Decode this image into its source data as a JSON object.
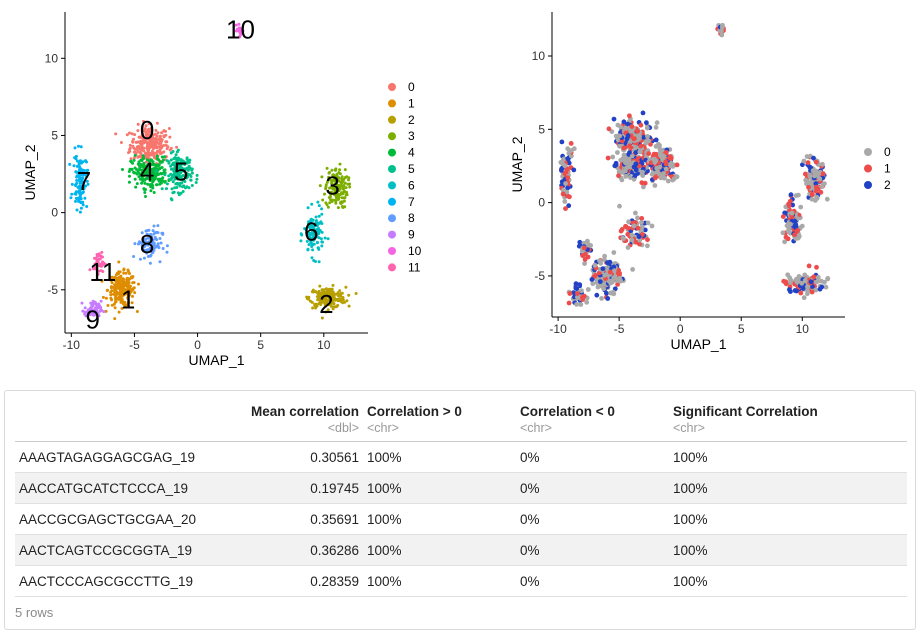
{
  "chart_data": [
    {
      "type": "scatter",
      "xlabel": "UMAP_1",
      "ylabel": "UMAP_2",
      "xticks": [
        -10,
        -5,
        0,
        5,
        10
      ],
      "yticks": [
        -5,
        0,
        5,
        10
      ],
      "xlim": [
        -10.5,
        13.5
      ],
      "ylim": [
        -7.8,
        13.0
      ],
      "legend_position": "right",
      "series": [
        {
          "name": "0",
          "color": "#F8766D",
          "center": [
            -3.8,
            4.4
          ],
          "spread": [
            1.4,
            1.1
          ],
          "n": 260
        },
        {
          "name": "1",
          "color": "#DE8C00",
          "center": [
            -6.0,
            -5.0
          ],
          "spread": [
            1.0,
            1.0
          ],
          "n": 220
        },
        {
          "name": "2",
          "color": "#B79F00",
          "center": [
            10.3,
            -5.5
          ],
          "spread": [
            1.3,
            0.6
          ],
          "n": 190
        },
        {
          "name": "3",
          "color": "#7CAE00",
          "center": [
            11.0,
            1.6
          ],
          "spread": [
            0.8,
            1.2
          ],
          "n": 150
        },
        {
          "name": "4",
          "color": "#00BA38",
          "center": [
            -3.8,
            2.6
          ],
          "spread": [
            1.3,
            0.9
          ],
          "n": 230
        },
        {
          "name": "5",
          "color": "#00C08B",
          "center": [
            -1.4,
            2.6
          ],
          "spread": [
            0.9,
            1.1
          ],
          "n": 160
        },
        {
          "name": "6",
          "color": "#00BFC4",
          "center": [
            9.2,
            -1.4
          ],
          "spread": [
            0.7,
            1.3
          ],
          "n": 120
        },
        {
          "name": "7",
          "color": "#00B4F0",
          "center": [
            -9.3,
            2.0
          ],
          "spread": [
            0.5,
            1.6
          ],
          "n": 110
        },
        {
          "name": "8",
          "color": "#619CFF",
          "center": [
            -3.8,
            -2.0
          ],
          "spread": [
            0.9,
            1.0
          ],
          "n": 90
        },
        {
          "name": "9",
          "color": "#C77CFF",
          "center": [
            -8.3,
            -6.3
          ],
          "spread": [
            0.6,
            0.5
          ],
          "n": 70
        },
        {
          "name": "10",
          "color": "#F564E3",
          "center": [
            3.4,
            11.8
          ],
          "spread": [
            0.25,
            0.35
          ],
          "n": 25
        },
        {
          "name": "11",
          "color": "#FF64B0",
          "center": [
            -7.8,
            -3.2
          ],
          "spread": [
            0.4,
            0.6
          ],
          "n": 40
        }
      ],
      "cluster_labels": [
        {
          "text": "0",
          "x": -4.0,
          "y": 5.3
        },
        {
          "text": "4",
          "x": -4.0,
          "y": 2.6
        },
        {
          "text": "5",
          "x": -1.3,
          "y": 2.6
        },
        {
          "text": "7",
          "x": -9.0,
          "y": 2.0
        },
        {
          "text": "3",
          "x": 10.7,
          "y": 1.7
        },
        {
          "text": "6",
          "x": 9.0,
          "y": -1.3
        },
        {
          "text": "8",
          "x": -4.0,
          "y": -2.1
        },
        {
          "text": "11",
          "x": -7.5,
          "y": -3.9
        },
        {
          "text": "1",
          "x": -5.5,
          "y": -5.7
        },
        {
          "text": "9",
          "x": -8.3,
          "y": -7.0
        },
        {
          "text": "2",
          "x": 10.2,
          "y": -6.0
        },
        {
          "text": "10",
          "x": 3.4,
          "y": 11.8
        }
      ]
    },
    {
      "type": "scatter",
      "xlabel": "UMAP_1",
      "ylabel": "UMAP_2",
      "xticks": [
        -10,
        -5,
        0,
        5,
        10
      ],
      "yticks": [
        -5,
        0,
        5,
        10
      ],
      "xlim": [
        -10.5,
        13.5
      ],
      "ylim": [
        -7.8,
        13.0
      ],
      "legend_position": "right",
      "series": [
        {
          "name": "0",
          "color": "#A9A9A9"
        },
        {
          "name": "1",
          "color": "#EE4B4B"
        },
        {
          "name": "2",
          "color": "#2142C6"
        }
      ]
    }
  ],
  "table": {
    "columns": [
      {
        "label": "",
        "type": ""
      },
      {
        "label": "Mean correlation",
        "type": "<dbl>"
      },
      {
        "label": "Correlation > 0",
        "type": "<chr>"
      },
      {
        "label": "Correlation < 0",
        "type": "<chr>"
      },
      {
        "label": "Significant Correlation",
        "type": "<chr>"
      }
    ],
    "rows": [
      [
        "AAAGTAGAGGAGCGAG_19",
        "0.30561",
        "100%",
        "0%",
        "100%"
      ],
      [
        "AACCATGCATCTCCCA_19",
        "0.19745",
        "100%",
        "0%",
        "100%"
      ],
      [
        "AACCGCGAGCTGCGAA_20",
        "0.35691",
        "100%",
        "0%",
        "100%"
      ],
      [
        "AACTCAGTCCGCGGTA_19",
        "0.36286",
        "100%",
        "0%",
        "100%"
      ],
      [
        "AACTCCCAGCGCCTTG_19",
        "0.28359",
        "100%",
        "0%",
        "100%"
      ]
    ],
    "footer": "5 rows"
  }
}
